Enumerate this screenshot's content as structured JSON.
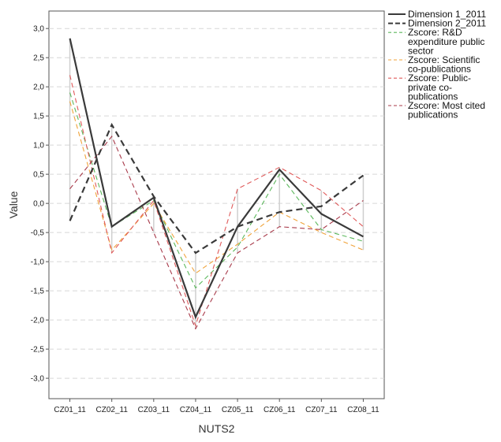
{
  "chart_data": {
    "type": "line",
    "xlabel": "NUTS2",
    "ylabel": "Value",
    "ylim": [
      -3.35,
      3.3
    ],
    "yticks": [
      3.0,
      2.5,
      2.0,
      1.5,
      1.0,
      0.5,
      0.0,
      -0.5,
      -1.0,
      -1.5,
      -2.0,
      -2.5,
      -3.0
    ],
    "ytick_labels": [
      "3,0",
      "2,5",
      "2,0",
      "1,5",
      "1,0",
      "0,5",
      "0,0",
      "-0,5",
      "-1,0",
      "-1,5",
      "-2,0",
      "-2,5",
      "-3,0"
    ],
    "categories": [
      "CZ01_11",
      "CZ02_11",
      "CZ03_11",
      "CZ04_11",
      "CZ05_11",
      "CZ06_11",
      "CZ07_11",
      "CZ08_11"
    ],
    "grid": "horizontal dashed",
    "legend_position": "right",
    "series": [
      {
        "name": "Dimension 1_2011",
        "legend_lines": [
          "Dimension 1_2011"
        ],
        "color": "#3a3a3a",
        "style": "solid",
        "values": [
          2.83,
          -0.4,
          0.1,
          -1.95,
          -0.4,
          0.58,
          -0.18,
          -0.57
        ]
      },
      {
        "name": "Dimension 2_2011",
        "legend_lines": [
          "Dimension 2_2011"
        ],
        "color": "#3a3a3a",
        "style": "dashed",
        "values": [
          -0.3,
          1.35,
          0.12,
          -0.85,
          -0.4,
          -0.15,
          -0.05,
          0.48
        ]
      },
      {
        "name": "Zscore: R&D expenditure public sector",
        "legend_lines": [
          "Zscore:  R&D",
          "expenditure public",
          "sector"
        ],
        "color": "#5cb85c",
        "style": "dashed-thin",
        "values": [
          1.9,
          -0.4,
          0.05,
          -1.45,
          -0.75,
          0.5,
          -0.45,
          -0.65
        ]
      },
      {
        "name": "Zscore: Scientific co-publications",
        "legend_lines": [
          "Zscore:  Scientific",
          "co-publications"
        ],
        "color": "#f0a33a",
        "style": "dashed-thin",
        "values": [
          1.75,
          -0.8,
          0.0,
          -1.2,
          -0.7,
          -0.15,
          -0.5,
          -0.8
        ]
      },
      {
        "name": "Zscore: Public-private co-publications",
        "legend_lines": [
          "Zscore:  Public-",
          "private co-",
          "publications"
        ],
        "color": "#e05a5a",
        "style": "dashed-thin",
        "values": [
          2.2,
          -0.85,
          0.05,
          -2.1,
          0.25,
          0.62,
          0.22,
          -0.4
        ]
      },
      {
        "name": "Zscore: Most cited publications",
        "legend_lines": [
          "Zscore:  Most cited",
          "publications"
        ],
        "color": "#a83a4a",
        "style": "dashed-thin",
        "values": [
          0.25,
          1.15,
          -0.5,
          -2.15,
          -0.85,
          -0.4,
          -0.45,
          0.05
        ]
      }
    ]
  }
}
